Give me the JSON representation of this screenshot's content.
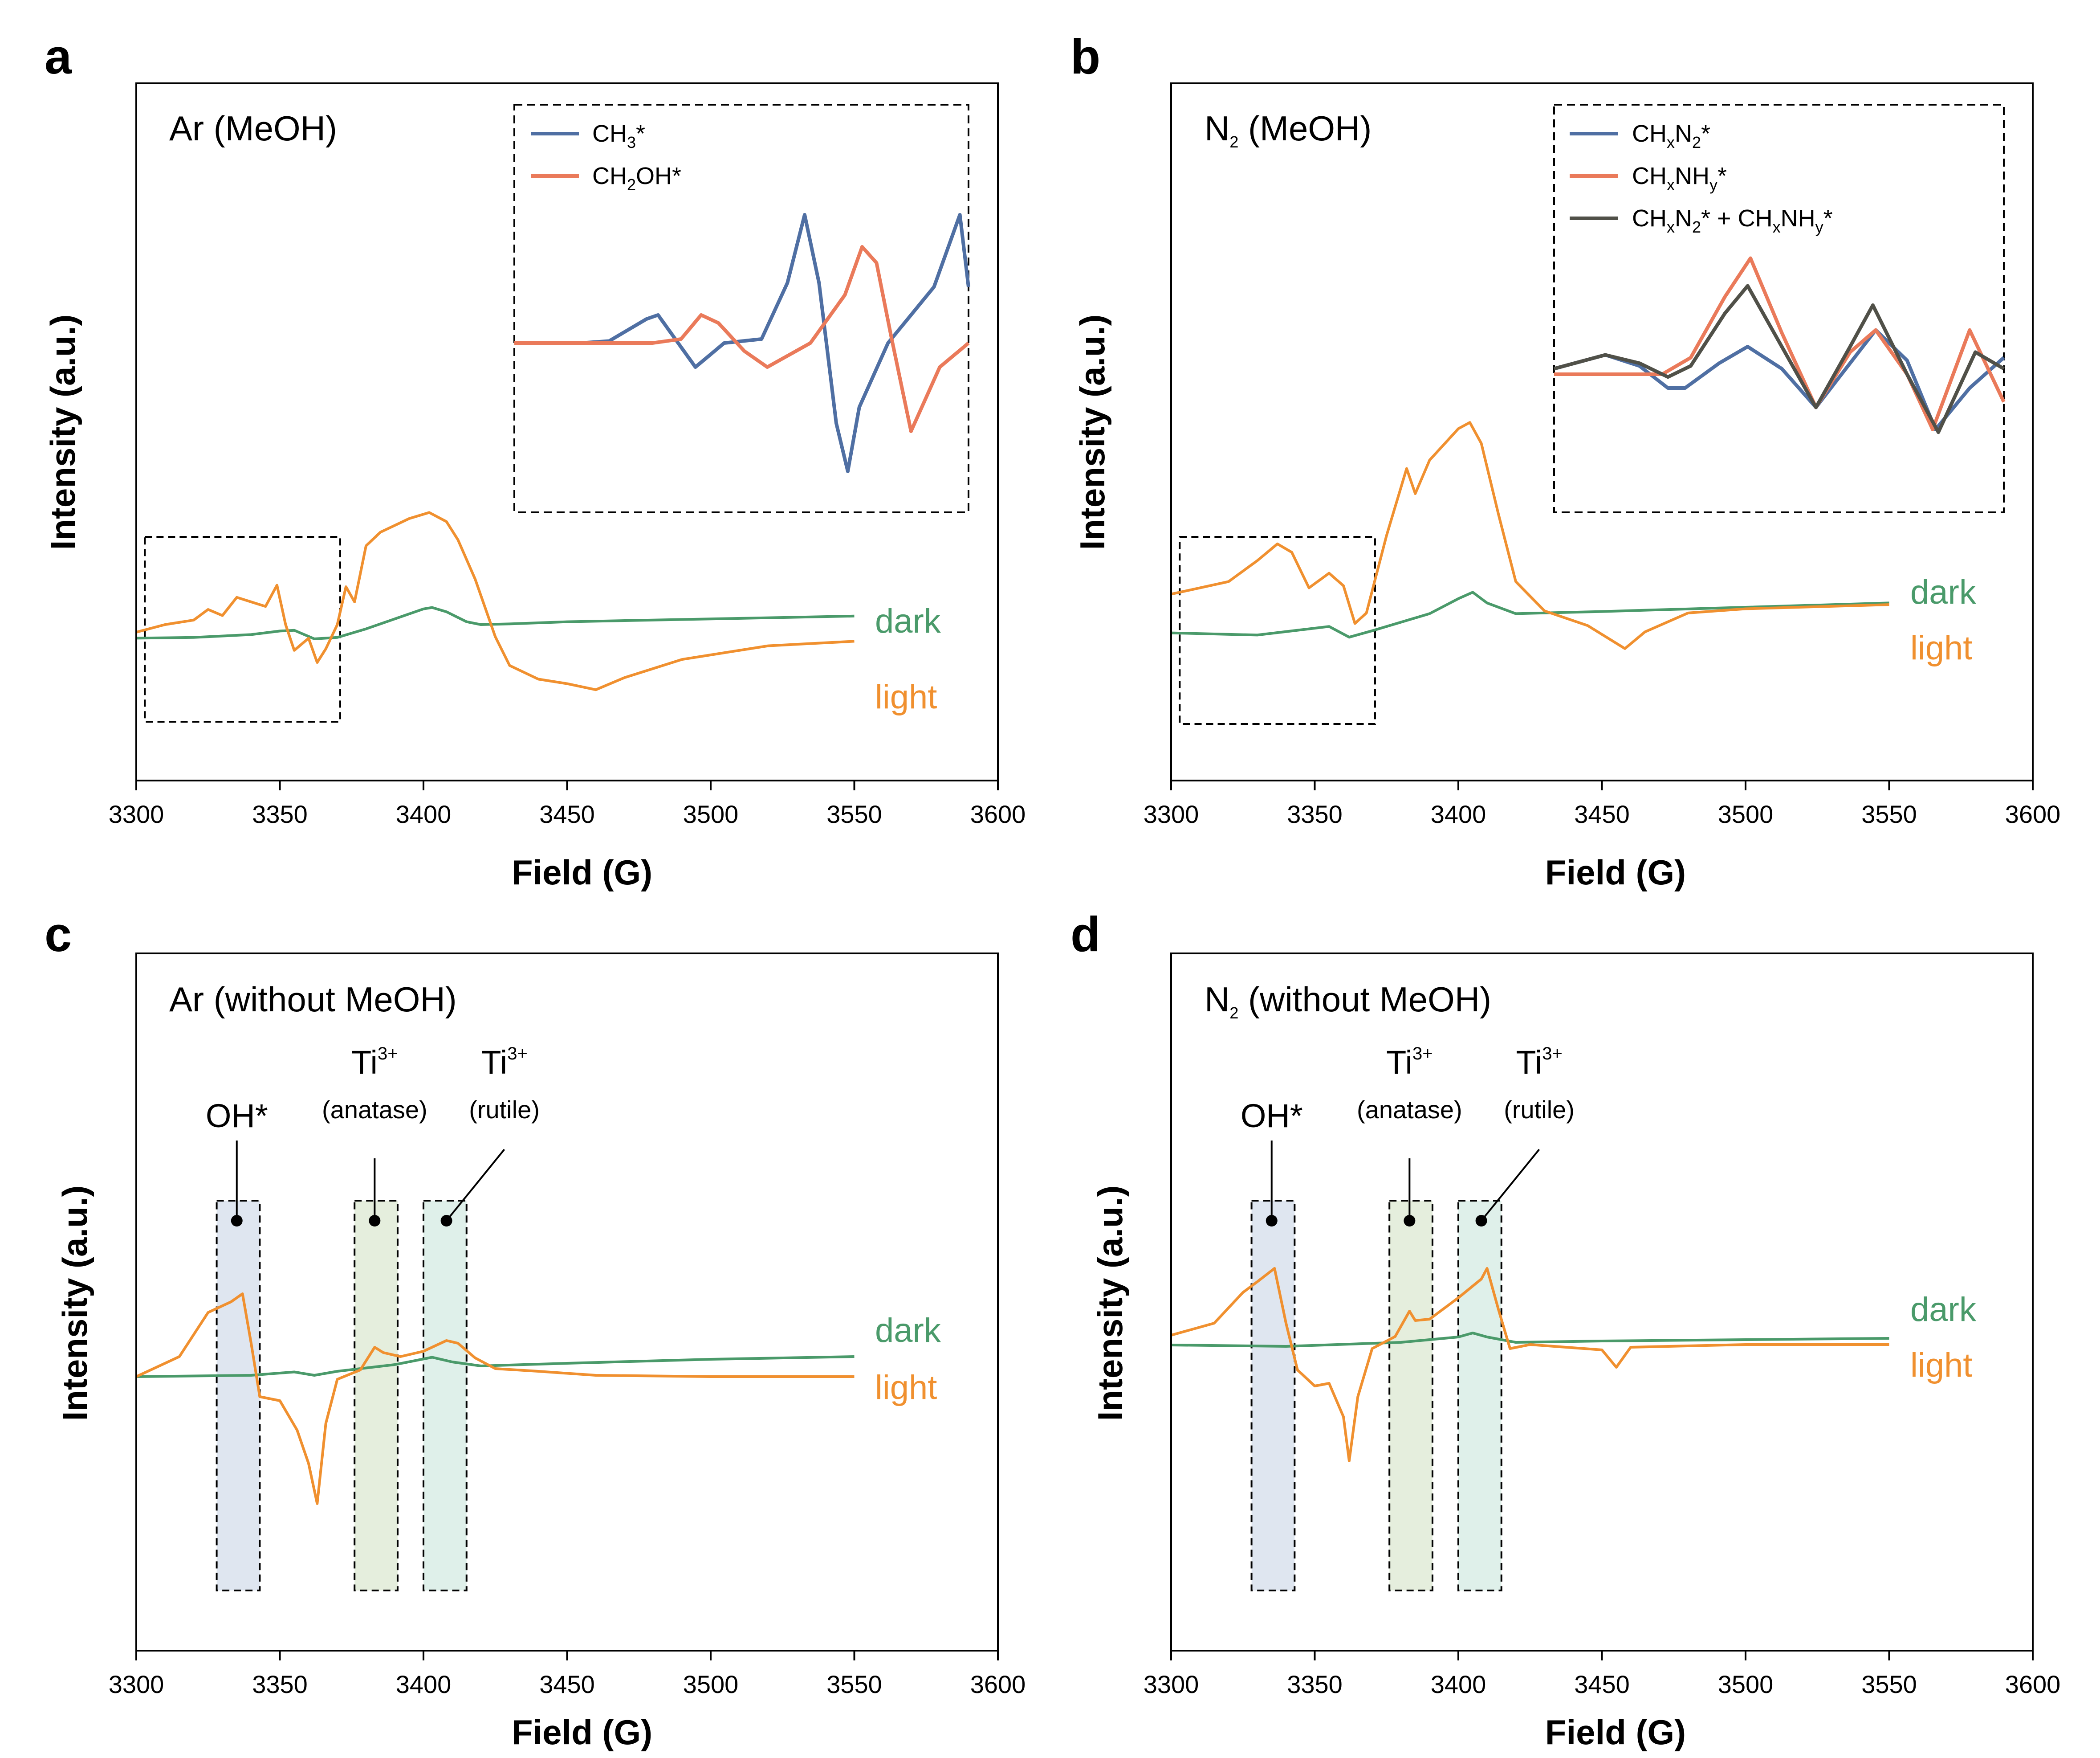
{
  "chart_data": [
    {
      "panel": "a",
      "type": "line",
      "condition": "Ar (MeOH)",
      "xlabel": "Field (G)",
      "ylabel": "Intensity (a.u.)",
      "xlim": [
        3300,
        3600
      ],
      "xticks": [
        3300,
        3350,
        3400,
        3450,
        3500,
        3550,
        3600
      ],
      "y_ticks_shown": false,
      "series": [
        {
          "name": "dark",
          "color": "#4a9a6a",
          "x": [
            3300,
            3320,
            3340,
            3350,
            3355,
            3362,
            3370,
            3380,
            3390,
            3400,
            3403,
            3408,
            3415,
            3420,
            3430,
            3450,
            3500,
            3550
          ],
          "y": [
            0.55,
            0.6,
            0.8,
            1.05,
            1.1,
            0.5,
            0.6,
            1.2,
            1.9,
            2.6,
            2.7,
            2.4,
            1.7,
            1.5,
            1.55,
            1.7,
            1.9,
            2.1
          ]
        },
        {
          "name": "light",
          "color": "#f0902f",
          "x": [
            3300,
            3310,
            3320,
            3325,
            3330,
            3335,
            3340,
            3345,
            3349,
            3352,
            3355,
            3360,
            3363,
            3366,
            3370,
            3373,
            3376,
            3380,
            3385,
            3395,
            3402,
            3408,
            3412,
            3418,
            3425,
            3430,
            3440,
            3450,
            3460,
            3470,
            3480,
            3490,
            3500,
            3520,
            3550
          ],
          "y": [
            1.5,
            2.0,
            2.3,
            3.0,
            2.6,
            3.8,
            3.5,
            3.2,
            4.6,
            2.0,
            0.3,
            1.1,
            -0.5,
            0.4,
            2.0,
            4.5,
            3.5,
            7.2,
            8.1,
            9.0,
            9.4,
            8.8,
            7.6,
            5.0,
            1.2,
            -0.7,
            -1.6,
            -1.9,
            -2.3,
            -1.5,
            -0.9,
            -0.3,
            0.0,
            0.6,
            0.9
          ]
        }
      ],
      "inset_box": {
        "x": [
          3303,
          3371
        ]
      },
      "inset": {
        "series": [
          {
            "name": "CH3*",
            "color": "#4f6fa3",
            "x": [
              3432,
              3455,
              3465,
              3478,
              3482,
              3488,
              3495,
              3505,
              3518,
              3527,
              3533,
              3538,
              3544,
              3548,
              3552,
              3562,
              3578,
              3587,
              3590
            ],
            "y": [
              0,
              0,
              0.05,
              0.6,
              0.7,
              0.1,
              -0.6,
              0,
              0.1,
              1.5,
              3.2,
              1.5,
              -2.0,
              -3.2,
              -1.6,
              0,
              1.4,
              3.2,
              1.4
            ]
          },
          {
            "name": "CH2OH*",
            "color": "#ea7a5a",
            "x": [
              3432,
              3468,
              3480,
              3490,
              3497,
              3503,
              3512,
              3520,
              3535,
              3547,
              3553,
              3558,
              3563,
              3570,
              3580,
              3590
            ],
            "y": [
              0,
              0,
              0,
              0.1,
              0.7,
              0.5,
              -0.2,
              -0.6,
              0,
              1.2,
              2.4,
              2.0,
              0.2,
              -2.2,
              -0.6,
              0
            ]
          }
        ]
      },
      "legend": [
        "CH3*",
        "CH2OH*"
      ]
    },
    {
      "panel": "b",
      "type": "line",
      "condition": "N2 (MeOH)",
      "xlabel": "Field (G)",
      "ylabel": "Intensity (a.u.)",
      "xlim": [
        3300,
        3600
      ],
      "xticks": [
        3300,
        3350,
        3400,
        3450,
        3500,
        3550,
        3600
      ],
      "y_ticks_shown": false,
      "series": [
        {
          "name": "dark",
          "color": "#4a9a6a",
          "x": [
            3300,
            3330,
            3355,
            3362,
            3370,
            3390,
            3400,
            3405,
            3410,
            3420,
            3450,
            3500,
            3550
          ],
          "y": [
            0.3,
            0.2,
            0.6,
            0.1,
            0.4,
            1.2,
            1.9,
            2.2,
            1.7,
            1.2,
            1.3,
            1.5,
            1.7
          ]
        },
        {
          "name": "light",
          "color": "#f0902f",
          "x": [
            3300,
            3320,
            3330,
            3337,
            3342,
            3348,
            3355,
            3360,
            3364,
            3368,
            3375,
            3382,
            3385,
            3390,
            3400,
            3404,
            3408,
            3414,
            3420,
            3430,
            3445,
            3458,
            3465,
            3480,
            3500,
            3550
          ],
          "y": [
            1.2,
            1.8,
            2.8,
            3.6,
            3.2,
            1.5,
            2.2,
            1.6,
            -0.2,
            0.3,
            4.0,
            7.2,
            6.0,
            7.6,
            9.1,
            9.4,
            8.4,
            5.0,
            1.8,
            0.4,
            -0.3,
            -1.4,
            -0.6,
            0.3,
            0.5,
            0.7
          ]
        }
      ],
      "inset_box": {
        "x": [
          3303,
          3371
        ]
      },
      "inset": {
        "series": [
          {
            "name": "CHxN2*",
            "color": "#4f6fa3",
            "x": [
              3432,
              3450,
              3462,
              3472,
              3478,
              3490,
              3500,
              3512,
              3524,
              3536,
              3545,
              3556,
              3566,
              3578,
              3590
            ],
            "y": [
              0.2,
              0.7,
              0.3,
              -0.5,
              -0.5,
              0.4,
              1.0,
              0.2,
              -1.2,
              0.4,
              1.6,
              0.5,
              -2.0,
              -0.5,
              0.6
            ]
          },
          {
            "name": "CHxNHy*",
            "color": "#ea7a5a",
            "x": [
              3432,
              3458,
              3470,
              3480,
              3492,
              3501,
              3512,
              3524,
              3536,
              3545,
              3556,
              3565,
              3578,
              3590
            ],
            "y": [
              0,
              0,
              0,
              0.6,
              2.8,
              4.2,
              1.5,
              -1.2,
              0.8,
              1.6,
              0.0,
              -2.0,
              1.6,
              -1.0
            ]
          },
          {
            "name": "CHxN2* + CHxNHy*",
            "color": "#505048",
            "x": [
              3432,
              3450,
              3462,
              3472,
              3480,
              3492,
              3500,
              3512,
              3524,
              3536,
              3544,
              3556,
              3567,
              3580,
              3590
            ],
            "y": [
              0.2,
              0.7,
              0.4,
              -0.1,
              0.3,
              2.2,
              3.2,
              1.0,
              -1.2,
              1.0,
              2.5,
              0.0,
              -2.1,
              0.8,
              0.2
            ]
          }
        ]
      },
      "legend": [
        "CHxN2*",
        "CHxNHy*",
        "CHxN2* + CHxNHy*"
      ]
    },
    {
      "panel": "c",
      "type": "line",
      "condition": "Ar (without MeOH)",
      "xlabel": "Field (G)",
      "ylabel": "Intensity (a.u.)",
      "xlim": [
        3300,
        3600
      ],
      "xticks": [
        3300,
        3350,
        3400,
        3450,
        3500,
        3550,
        3600
      ],
      "y_ticks_shown": false,
      "series": [
        {
          "name": "dark",
          "color": "#4a9a6a",
          "x": [
            3300,
            3340,
            3355,
            3362,
            3370,
            3390,
            3403,
            3410,
            3420,
            3450,
            3500,
            3550
          ],
          "y": [
            0.0,
            0.1,
            0.35,
            0.1,
            0.4,
            0.9,
            1.45,
            1.1,
            0.8,
            1.0,
            1.3,
            1.5
          ]
        },
        {
          "name": "light",
          "color": "#f0902f",
          "x": [
            3300,
            3315,
            3325,
            3333,
            3337,
            3340,
            3343,
            3350,
            3356,
            3360,
            3363,
            3366,
            3370,
            3378,
            3383,
            3386,
            3392,
            3400,
            3408,
            3412,
            3418,
            3425,
            3440,
            3460,
            3500,
            3550
          ],
          "y": [
            0.0,
            1.5,
            4.8,
            5.6,
            6.2,
            2.5,
            -1.5,
            -1.8,
            -4.0,
            -6.5,
            -9.5,
            -3.5,
            -0.2,
            0.5,
            2.2,
            1.8,
            1.5,
            1.9,
            2.7,
            2.5,
            1.4,
            0.6,
            0.4,
            0.1,
            0.0,
            0.0
          ]
        }
      ],
      "highlight_boxes": [
        {
          "x": [
            3328,
            3343
          ],
          "color": "#dfe6f0"
        },
        {
          "x": [
            3376,
            3391
          ],
          "color": "#e5eedd"
        },
        {
          "x": [
            3400,
            3415
          ],
          "color": "#dff0ea"
        }
      ],
      "annotations": [
        {
          "main": "OH*",
          "sub": "",
          "x": 3335
        },
        {
          "main": "Ti3+",
          "sub": "(anatase)",
          "x": 3383
        },
        {
          "main": "Ti3+",
          "sub": "(rutile)",
          "x": 3408
        }
      ]
    },
    {
      "panel": "d",
      "type": "line",
      "condition": "N2 (without MeOH)",
      "xlabel": "Field (G)",
      "ylabel": "Intensity (a.u.)",
      "xlim": [
        3300,
        3600
      ],
      "xticks": [
        3300,
        3350,
        3400,
        3450,
        3500,
        3550,
        3600
      ],
      "y_ticks_shown": false,
      "series": [
        {
          "name": "dark",
          "color": "#4a9a6a",
          "x": [
            3300,
            3340,
            3380,
            3400,
            3405,
            3410,
            3420,
            3450,
            3500,
            3550
          ],
          "y": [
            0.2,
            0.1,
            0.4,
            0.8,
            1.1,
            0.8,
            0.4,
            0.5,
            0.6,
            0.7
          ]
        },
        {
          "name": "light",
          "color": "#f0902f",
          "x": [
            3300,
            3315,
            3325,
            3330,
            3336,
            3340,
            3344,
            3350,
            3355,
            3360,
            3362,
            3365,
            3370,
            3378,
            3383,
            3385,
            3390,
            3400,
            3408,
            3410,
            3414,
            3418,
            3425,
            3450,
            3455,
            3460,
            3500,
            3550
          ],
          "y": [
            0.6,
            1.5,
            3.8,
            4.6,
            5.6,
            1.5,
            -2.0,
            -3.2,
            -3.0,
            -5.5,
            -8.8,
            -4.0,
            -0.4,
            0.5,
            2.4,
            1.7,
            1.8,
            3.4,
            4.8,
            5.6,
            2.5,
            -0.4,
            -0.1,
            -0.5,
            -1.8,
            -0.3,
            -0.1,
            -0.1
          ]
        }
      ],
      "highlight_boxes": [
        {
          "x": [
            3328,
            3343
          ],
          "color": "#dfe6f0"
        },
        {
          "x": [
            3376,
            3391
          ],
          "color": "#e5eedd"
        },
        {
          "x": [
            3400,
            3415
          ],
          "color": "#dff0ea"
        }
      ],
      "annotations": [
        {
          "main": "OH*",
          "sub": "",
          "x": 3335
        },
        {
          "main": "Ti3+",
          "sub": "(anatase)",
          "x": 3383
        },
        {
          "main": "Ti3+",
          "sub": "(rutile)",
          "x": 3408
        }
      ]
    }
  ],
  "text": {
    "a": {
      "letter": "a",
      "cond": "Ar (MeOH)",
      "leg1": "CH",
      "leg1sub": "3",
      "leg1tail": "*",
      "leg2a": "CH",
      "leg2sub": "2",
      "leg2tail": "OH*",
      "dark": "dark",
      "light": "light"
    },
    "b": {
      "letter": "b",
      "condA": "N",
      "condSub": "2",
      "condB": " (MeOH)",
      "dark": "dark",
      "light": "light"
    },
    "c": {
      "letter": "c",
      "cond": "Ar (without MeOH)",
      "dark": "dark",
      "light": "light"
    },
    "d": {
      "letter": "d",
      "condA": "N",
      "condSub": "2",
      "condB": " (without MeOH)",
      "dark": "dark",
      "light": "light"
    },
    "annot": {
      "oh": "OH*",
      "ti": "Ti",
      "tiSup": "3+",
      "anatase": "(anatase)",
      "rutile": "(rutile)"
    },
    "axis": {
      "x": "Field (G)",
      "y": "Intensity (a.u.)"
    }
  }
}
